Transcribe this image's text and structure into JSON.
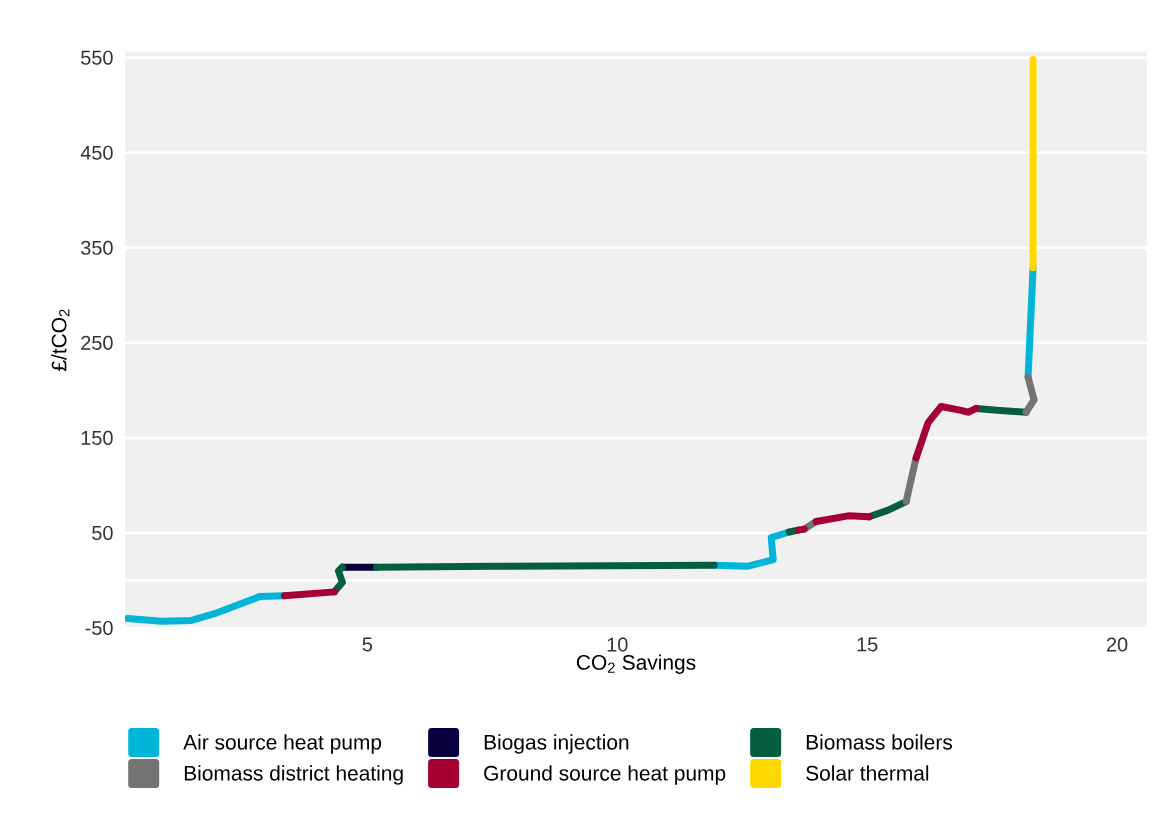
{
  "chart_data": {
    "type": "line",
    "xlabel": "CO$_{2}$ Savings",
    "ylabel": "£/tCO$_{2}$",
    "xlim": [
      0.15,
      20.6
    ],
    "ylim": [
      -50,
      556
    ],
    "xticks": [
      5,
      10,
      15,
      20
    ],
    "yticks": [
      -50,
      {
        "value": 0,
        "label": null
      },
      50,
      150,
      250,
      350,
      450,
      550
    ],
    "grid": "y",
    "legend": "bottom",
    "marker": "none",
    "line_style": "solid",
    "series": [
      {
        "name": "Air source heat pump",
        "color": "#00b5d8",
        "x": [
          0.2,
          0.88,
          1.48,
          1.94,
          2.84,
          3.34,
          7.0,
          11.94,
          12.62,
          13.12,
          13.08,
          13.44,
          16.0,
          18.22,
          18.32
        ],
        "values": [
          -40,
          -43,
          -42,
          -35,
          -17,
          -16,
          null,
          16,
          15,
          22,
          45,
          51,
          null,
          214,
          329
        ]
      },
      {
        "name": "Biogas injection",
        "color": "#0a0040",
        "x": [
          4.5,
          5.18
        ],
        "values": [
          14,
          14
        ]
      },
      {
        "name": "Biomass boilers",
        "color": "#055e3f",
        "x": [
          4.34,
          4.5,
          4.42,
          4.5,
          4.8,
          5.18,
          7.5,
          11.94,
          12.5,
          13.44,
          13.62,
          14.5,
          15.04,
          15.42,
          15.78,
          16.5,
          17.18,
          17.6,
          18.18
        ],
        "values": [
          -12,
          -2,
          10,
          14,
          null,
          14,
          15,
          16,
          null,
          51,
          53,
          null,
          67,
          74,
          83,
          null,
          181,
          179,
          177
        ]
      },
      {
        "name": "Biomass district heating",
        "color": "#737373",
        "x": [
          13.74,
          13.98,
          14.5,
          15.78,
          15.98,
          17.0,
          18.18,
          18.34,
          18.22
        ],
        "values": [
          54,
          62,
          null,
          83,
          129,
          null,
          177,
          190,
          214
        ]
      },
      {
        "name": "Ground source heat pump",
        "color": "#a50034",
        "x": [
          3.34,
          4.34,
          9.0,
          13.62,
          13.74,
          13.86,
          13.98,
          14.62,
          15.04,
          15.5,
          15.98,
          16.22,
          16.48,
          16.88,
          17.02,
          17.18
        ],
        "values": [
          -16,
          -12,
          null,
          53,
          54,
          null,
          62,
          68,
          67,
          null,
          129,
          166,
          183,
          179,
          177,
          181
        ]
      },
      {
        "name": "Solar thermal",
        "color": "#ffd800",
        "x": [
          18.32,
          18.32
        ],
        "values": [
          329,
          548
        ]
      }
    ]
  }
}
